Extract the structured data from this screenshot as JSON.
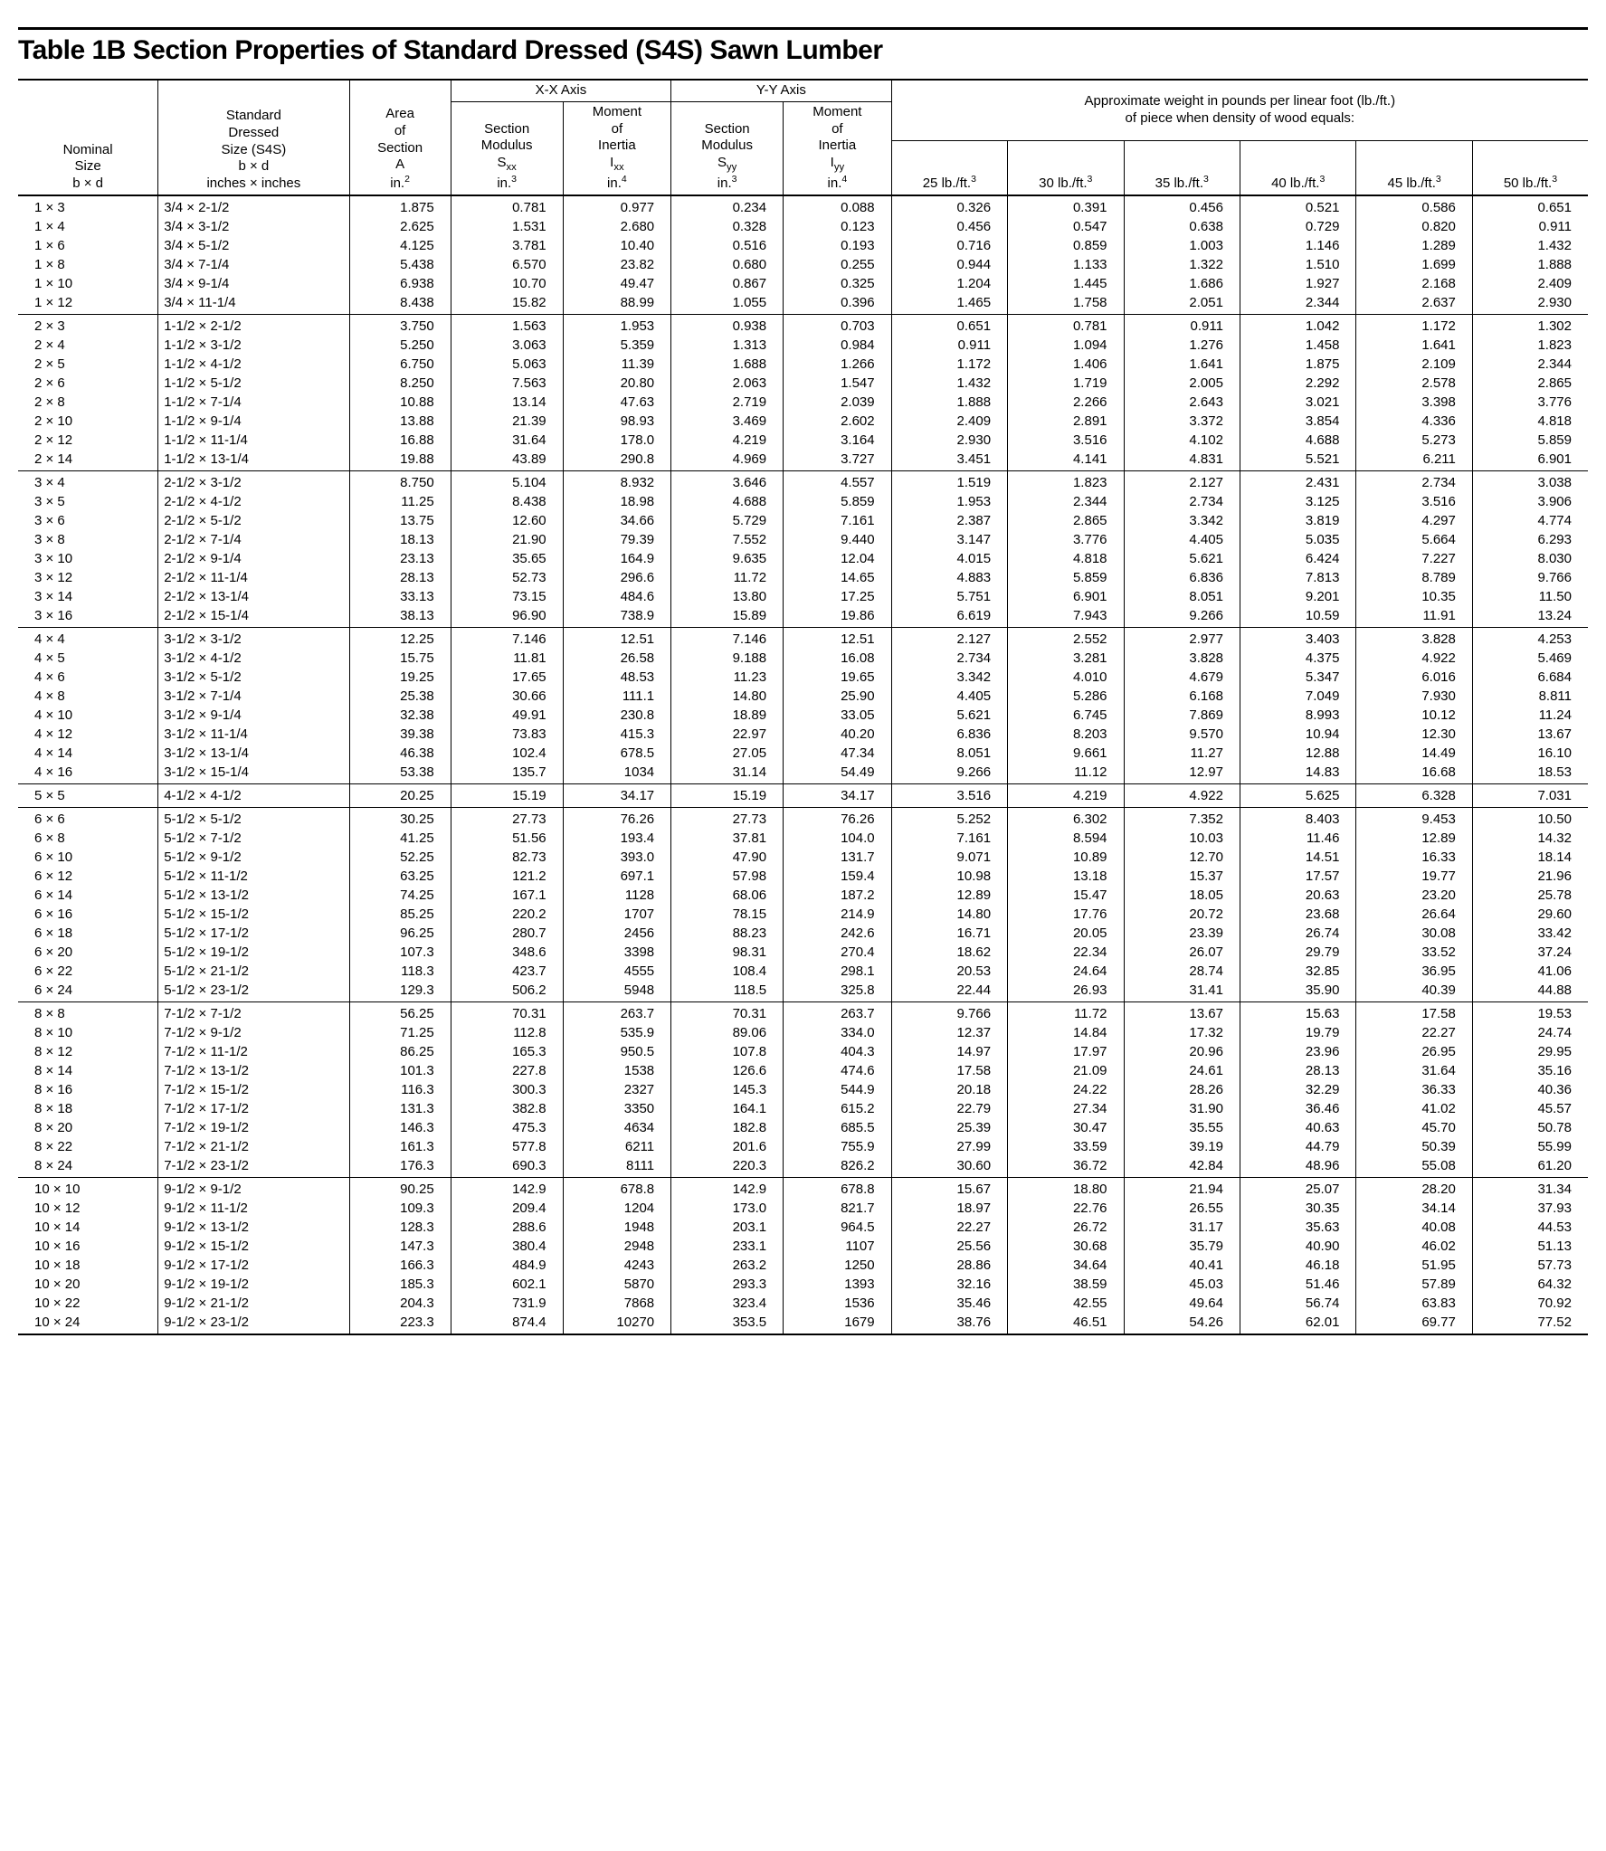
{
  "title": "Table 1B   Section Properties of Standard Dressed (S4S) Sawn Lumber",
  "header": {
    "nominal_l1": "Nominal",
    "nominal_l2": "Size",
    "nominal_l3": "b × d",
    "dressed_l1": "Standard",
    "dressed_l2": "Dressed",
    "dressed_l3": "Size (S4S)",
    "dressed_l4": "b × d",
    "dressed_l5": "inches × inches",
    "area_l1": "Area",
    "area_l2": "of",
    "area_l3": "Section",
    "area_l4": "A",
    "area_unit": "in.",
    "xx_axis": "X-X Axis",
    "yy_axis": "Y-Y Axis",
    "sec_mod_l1": "Section",
    "sec_mod_l2": "Modulus",
    "sxx": "S",
    "inertia_l1": "Moment",
    "inertia_l2": "of",
    "inertia_l3": "Inertia",
    "ixx": "I",
    "weight_caption_l1": "Approximate weight in pounds per linear foot (lb./ft.)",
    "weight_caption_l2": "of piece when density of wood equals:",
    "d25": "25 lb./ft.",
    "d30": "30 lb./ft.",
    "d35": "35 lb./ft.",
    "d40": "40 lb./ft.",
    "d45": "45 lb./ft.",
    "d50": "50 lb./ft."
  },
  "groups": [
    {
      "rows": [
        [
          "1 ×  3",
          "3/4 ×  2-1/2",
          "1.875",
          "0.781",
          "0.977",
          "0.234",
          "0.088",
          "0.326",
          "0.391",
          "0.456",
          "0.521",
          "0.586",
          "0.651"
        ],
        [
          "1 ×  4",
          "3/4 ×  3-1/2",
          "2.625",
          "1.531",
          "2.680",
          "0.328",
          "0.123",
          "0.456",
          "0.547",
          "0.638",
          "0.729",
          "0.820",
          "0.911"
        ],
        [
          "1 ×  6",
          "3/4 ×  5-1/2",
          "4.125",
          "3.781",
          "10.40",
          "0.516",
          "0.193",
          "0.716",
          "0.859",
          "1.003",
          "1.146",
          "1.289",
          "1.432"
        ],
        [
          "1 ×  8",
          "3/4 ×  7-1/4",
          "5.438",
          "6.570",
          "23.82",
          "0.680",
          "0.255",
          "0.944",
          "1.133",
          "1.322",
          "1.510",
          "1.699",
          "1.888"
        ],
        [
          "1 × 10",
          "3/4 ×  9-1/4",
          "6.938",
          "10.70",
          "49.47",
          "0.867",
          "0.325",
          "1.204",
          "1.445",
          "1.686",
          "1.927",
          "2.168",
          "2.409"
        ],
        [
          "1 × 12",
          "3/4 × 11-1/4",
          "8.438",
          "15.82",
          "88.99",
          "1.055",
          "0.396",
          "1.465",
          "1.758",
          "2.051",
          "2.344",
          "2.637",
          "2.930"
        ]
      ]
    },
    {
      "rows": [
        [
          "2 ×  3",
          "1-1/2 ×  2-1/2",
          "3.750",
          "1.563",
          "1.953",
          "0.938",
          "0.703",
          "0.651",
          "0.781",
          "0.911",
          "1.042",
          "1.172",
          "1.302"
        ],
        [
          "2 ×  4",
          "1-1/2 ×  3-1/2",
          "5.250",
          "3.063",
          "5.359",
          "1.313",
          "0.984",
          "0.911",
          "1.094",
          "1.276",
          "1.458",
          "1.641",
          "1.823"
        ],
        [
          "2 ×  5",
          "1-1/2 ×  4-1/2",
          "6.750",
          "5.063",
          "11.39",
          "1.688",
          "1.266",
          "1.172",
          "1.406",
          "1.641",
          "1.875",
          "2.109",
          "2.344"
        ],
        [
          "2 ×  6",
          "1-1/2 ×  5-1/2",
          "8.250",
          "7.563",
          "20.80",
          "2.063",
          "1.547",
          "1.432",
          "1.719",
          "2.005",
          "2.292",
          "2.578",
          "2.865"
        ],
        [
          "2 ×  8",
          "1-1/2 ×  7-1/4",
          "10.88",
          "13.14",
          "47.63",
          "2.719",
          "2.039",
          "1.888",
          "2.266",
          "2.643",
          "3.021",
          "3.398",
          "3.776"
        ],
        [
          "2 × 10",
          "1-1/2 ×  9-1/4",
          "13.88",
          "21.39",
          "98.93",
          "3.469",
          "2.602",
          "2.409",
          "2.891",
          "3.372",
          "3.854",
          "4.336",
          "4.818"
        ],
        [
          "2 × 12",
          "1-1/2 × 11-1/4",
          "16.88",
          "31.64",
          "178.0",
          "4.219",
          "3.164",
          "2.930",
          "3.516",
          "4.102",
          "4.688",
          "5.273",
          "5.859"
        ],
        [
          "2 × 14",
          "1-1/2 × 13-1/4",
          "19.88",
          "43.89",
          "290.8",
          "4.969",
          "3.727",
          "3.451",
          "4.141",
          "4.831",
          "5.521",
          "6.211",
          "6.901"
        ]
      ]
    },
    {
      "rows": [
        [
          "3 ×  4",
          "2-1/2 ×  3-1/2",
          "8.750",
          "5.104",
          "8.932",
          "3.646",
          "4.557",
          "1.519",
          "1.823",
          "2.127",
          "2.431",
          "2.734",
          "3.038"
        ],
        [
          "3 ×  5",
          "2-1/2 ×  4-1/2",
          "11.25",
          "8.438",
          "18.98",
          "4.688",
          "5.859",
          "1.953",
          "2.344",
          "2.734",
          "3.125",
          "3.516",
          "3.906"
        ],
        [
          "3 ×  6",
          "2-1/2 ×  5-1/2",
          "13.75",
          "12.60",
          "34.66",
          "5.729",
          "7.161",
          "2.387",
          "2.865",
          "3.342",
          "3.819",
          "4.297",
          "4.774"
        ],
        [
          "3 ×  8",
          "2-1/2 ×  7-1/4",
          "18.13",
          "21.90",
          "79.39",
          "7.552",
          "9.440",
          "3.147",
          "3.776",
          "4.405",
          "5.035",
          "5.664",
          "6.293"
        ],
        [
          "3 × 10",
          "2-1/2 ×  9-1/4",
          "23.13",
          "35.65",
          "164.9",
          "9.635",
          "12.04",
          "4.015",
          "4.818",
          "5.621",
          "6.424",
          "7.227",
          "8.030"
        ],
        [
          "3 × 12",
          "2-1/2 × 11-1/4",
          "28.13",
          "52.73",
          "296.6",
          "11.72",
          "14.65",
          "4.883",
          "5.859",
          "6.836",
          "7.813",
          "8.789",
          "9.766"
        ],
        [
          "3 × 14",
          "2-1/2 × 13-1/4",
          "33.13",
          "73.15",
          "484.6",
          "13.80",
          "17.25",
          "5.751",
          "6.901",
          "8.051",
          "9.201",
          "10.35",
          "11.50"
        ],
        [
          "3 × 16",
          "2-1/2 × 15-1/4",
          "38.13",
          "96.90",
          "738.9",
          "15.89",
          "19.86",
          "6.619",
          "7.943",
          "9.266",
          "10.59",
          "11.91",
          "13.24"
        ]
      ]
    },
    {
      "rows": [
        [
          "4 ×  4",
          "3-1/2 ×  3-1/2",
          "12.25",
          "7.146",
          "12.51",
          "7.146",
          "12.51",
          "2.127",
          "2.552",
          "2.977",
          "3.403",
          "3.828",
          "4.253"
        ],
        [
          "4 ×  5",
          "3-1/2 ×  4-1/2",
          "15.75",
          "11.81",
          "26.58",
          "9.188",
          "16.08",
          "2.734",
          "3.281",
          "3.828",
          "4.375",
          "4.922",
          "5.469"
        ],
        [
          "4 ×  6",
          "3-1/2 ×  5-1/2",
          "19.25",
          "17.65",
          "48.53",
          "11.23",
          "19.65",
          "3.342",
          "4.010",
          "4.679",
          "5.347",
          "6.016",
          "6.684"
        ],
        [
          "4 ×  8",
          "3-1/2 ×  7-1/4",
          "25.38",
          "30.66",
          "111.1",
          "14.80",
          "25.90",
          "4.405",
          "5.286",
          "6.168",
          "7.049",
          "7.930",
          "8.811"
        ],
        [
          "4 × 10",
          "3-1/2 ×  9-1/4",
          "32.38",
          "49.91",
          "230.8",
          "18.89",
          "33.05",
          "5.621",
          "6.745",
          "7.869",
          "8.993",
          "10.12",
          "11.24"
        ],
        [
          "4 × 12",
          "3-1/2 × 11-1/4",
          "39.38",
          "73.83",
          "415.3",
          "22.97",
          "40.20",
          "6.836",
          "8.203",
          "9.570",
          "10.94",
          "12.30",
          "13.67"
        ],
        [
          "4 × 14",
          "3-1/2 × 13-1/4",
          "46.38",
          "102.4",
          "678.5",
          "27.05",
          "47.34",
          "8.051",
          "9.661",
          "11.27",
          "12.88",
          "14.49",
          "16.10"
        ],
        [
          "4 × 16",
          "3-1/2 × 15-1/4",
          "53.38",
          "135.7",
          "1034",
          "31.14",
          "54.49",
          "9.266",
          "11.12",
          "12.97",
          "14.83",
          "16.68",
          "18.53"
        ]
      ]
    },
    {
      "rows": [
        [
          "5 ×  5",
          "4-1/2 ×  4-1/2",
          "20.25",
          "15.19",
          "34.17",
          "15.19",
          "34.17",
          "3.516",
          "4.219",
          "4.922",
          "5.625",
          "6.328",
          "7.031"
        ]
      ]
    },
    {
      "rows": [
        [
          "6 ×  6",
          "5-1/2 ×  5-1/2",
          "30.25",
          "27.73",
          "76.26",
          "27.73",
          "76.26",
          "5.252",
          "6.302",
          "7.352",
          "8.403",
          "9.453",
          "10.50"
        ],
        [
          "6 ×  8",
          "5-1/2 ×  7-1/2",
          "41.25",
          "51.56",
          "193.4",
          "37.81",
          "104.0",
          "7.161",
          "8.594",
          "10.03",
          "11.46",
          "12.89",
          "14.32"
        ],
        [
          "6 × 10",
          "5-1/2 ×  9-1/2",
          "52.25",
          "82.73",
          "393.0",
          "47.90",
          "131.7",
          "9.071",
          "10.89",
          "12.70",
          "14.51",
          "16.33",
          "18.14"
        ],
        [
          "6 × 12",
          "5-1/2 × 11-1/2",
          "63.25",
          "121.2",
          "697.1",
          "57.98",
          "159.4",
          "10.98",
          "13.18",
          "15.37",
          "17.57",
          "19.77",
          "21.96"
        ],
        [
          "6 × 14",
          "5-1/2 × 13-1/2",
          "74.25",
          "167.1",
          "1128",
          "68.06",
          "187.2",
          "12.89",
          "15.47",
          "18.05",
          "20.63",
          "23.20",
          "25.78"
        ],
        [
          "6 × 16",
          "5-1/2 × 15-1/2",
          "85.25",
          "220.2",
          "1707",
          "78.15",
          "214.9",
          "14.80",
          "17.76",
          "20.72",
          "23.68",
          "26.64",
          "29.60"
        ],
        [
          "6 × 18",
          "5-1/2 × 17-1/2",
          "96.25",
          "280.7",
          "2456",
          "88.23",
          "242.6",
          "16.71",
          "20.05",
          "23.39",
          "26.74",
          "30.08",
          "33.42"
        ],
        [
          "6 × 20",
          "5-1/2 × 19-1/2",
          "107.3",
          "348.6",
          "3398",
          "98.31",
          "270.4",
          "18.62",
          "22.34",
          "26.07",
          "29.79",
          "33.52",
          "37.24"
        ],
        [
          "6 × 22",
          "5-1/2 × 21-1/2",
          "118.3",
          "423.7",
          "4555",
          "108.4",
          "298.1",
          "20.53",
          "24.64",
          "28.74",
          "32.85",
          "36.95",
          "41.06"
        ],
        [
          "6 × 24",
          "5-1/2 × 23-1/2",
          "129.3",
          "506.2",
          "5948",
          "118.5",
          "325.8",
          "22.44",
          "26.93",
          "31.41",
          "35.90",
          "40.39",
          "44.88"
        ]
      ]
    },
    {
      "rows": [
        [
          "8 ×  8",
          "7-1/2 ×  7-1/2",
          "56.25",
          "70.31",
          "263.7",
          "70.31",
          "263.7",
          "9.766",
          "11.72",
          "13.67",
          "15.63",
          "17.58",
          "19.53"
        ],
        [
          "8 × 10",
          "7-1/2 ×  9-1/2",
          "71.25",
          "112.8",
          "535.9",
          "89.06",
          "334.0",
          "12.37",
          "14.84",
          "17.32",
          "19.79",
          "22.27",
          "24.74"
        ],
        [
          "8 × 12",
          "7-1/2 × 11-1/2",
          "86.25",
          "165.3",
          "950.5",
          "107.8",
          "404.3",
          "14.97",
          "17.97",
          "20.96",
          "23.96",
          "26.95",
          "29.95"
        ],
        [
          "8 × 14",
          "7-1/2 × 13-1/2",
          "101.3",
          "227.8",
          "1538",
          "126.6",
          "474.6",
          "17.58",
          "21.09",
          "24.61",
          "28.13",
          "31.64",
          "35.16"
        ],
        [
          "8 × 16",
          "7-1/2 × 15-1/2",
          "116.3",
          "300.3",
          "2327",
          "145.3",
          "544.9",
          "20.18",
          "24.22",
          "28.26",
          "32.29",
          "36.33",
          "40.36"
        ],
        [
          "8 × 18",
          "7-1/2 × 17-1/2",
          "131.3",
          "382.8",
          "3350",
          "164.1",
          "615.2",
          "22.79",
          "27.34",
          "31.90",
          "36.46",
          "41.02",
          "45.57"
        ],
        [
          "8 × 20",
          "7-1/2 × 19-1/2",
          "146.3",
          "475.3",
          "4634",
          "182.8",
          "685.5",
          "25.39",
          "30.47",
          "35.55",
          "40.63",
          "45.70",
          "50.78"
        ],
        [
          "8 × 22",
          "7-1/2 × 21-1/2",
          "161.3",
          "577.8",
          "6211",
          "201.6",
          "755.9",
          "27.99",
          "33.59",
          "39.19",
          "44.79",
          "50.39",
          "55.99"
        ],
        [
          "8 × 24",
          "7-1/2 × 23-1/2",
          "176.3",
          "690.3",
          "8111",
          "220.3",
          "826.2",
          "30.60",
          "36.72",
          "42.84",
          "48.96",
          "55.08",
          "61.20"
        ]
      ]
    },
    {
      "rows": [
        [
          "10 × 10",
          "9-1/2 ×  9-1/2",
          "90.25",
          "142.9",
          "678.8",
          "142.9",
          "678.8",
          "15.67",
          "18.80",
          "21.94",
          "25.07",
          "28.20",
          "31.34"
        ],
        [
          "10 × 12",
          "9-1/2 × 11-1/2",
          "109.3",
          "209.4",
          "1204",
          "173.0",
          "821.7",
          "18.97",
          "22.76",
          "26.55",
          "30.35",
          "34.14",
          "37.93"
        ],
        [
          "10 × 14",
          "9-1/2 × 13-1/2",
          "128.3",
          "288.6",
          "1948",
          "203.1",
          "964.5",
          "22.27",
          "26.72",
          "31.17",
          "35.63",
          "40.08",
          "44.53"
        ],
        [
          "10 × 16",
          "9-1/2 × 15-1/2",
          "147.3",
          "380.4",
          "2948",
          "233.1",
          "1107",
          "25.56",
          "30.68",
          "35.79",
          "40.90",
          "46.02",
          "51.13"
        ],
        [
          "10 × 18",
          "9-1/2 × 17-1/2",
          "166.3",
          "484.9",
          "4243",
          "263.2",
          "1250",
          "28.86",
          "34.64",
          "40.41",
          "46.18",
          "51.95",
          "57.73"
        ],
        [
          "10 × 20",
          "9-1/2 × 19-1/2",
          "185.3",
          "602.1",
          "5870",
          "293.3",
          "1393",
          "32.16",
          "38.59",
          "45.03",
          "51.46",
          "57.89",
          "64.32"
        ],
        [
          "10 × 22",
          "9-1/2 × 21-1/2",
          "204.3",
          "731.9",
          "7868",
          "323.4",
          "1536",
          "35.46",
          "42.55",
          "49.64",
          "56.74",
          "63.83",
          "70.92"
        ],
        [
          "10 × 24",
          "9-1/2 × 23-1/2",
          "223.3",
          "874.4",
          "10270",
          "353.5",
          "1679",
          "38.76",
          "46.51",
          "54.26",
          "62.01",
          "69.77",
          "77.52"
        ]
      ]
    }
  ]
}
